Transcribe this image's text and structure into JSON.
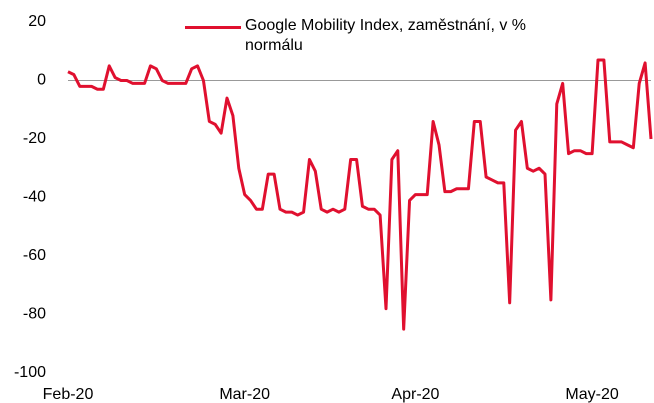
{
  "chart_data": {
    "type": "line",
    "categories": [
      "Feb-20",
      null,
      null,
      null,
      null,
      null,
      null,
      null,
      null,
      null,
      null,
      null,
      null,
      null,
      null,
      null,
      null,
      null,
      null,
      null,
      null,
      null,
      null,
      null,
      null,
      null,
      null,
      null,
      null,
      null,
      "Mar-20",
      null,
      null,
      null,
      null,
      null,
      null,
      null,
      null,
      null,
      null,
      null,
      null,
      null,
      null,
      null,
      null,
      null,
      null,
      null,
      null,
      null,
      null,
      null,
      null,
      null,
      null,
      null,
      null,
      "Apr-20",
      null,
      null,
      null,
      null,
      null,
      null,
      null,
      null,
      null,
      null,
      null,
      null,
      null,
      null,
      null,
      null,
      null,
      null,
      null,
      null,
      null,
      null,
      null,
      null,
      null,
      null,
      null,
      null,
      null,
      "May-20",
      null,
      null,
      null,
      null,
      null,
      null,
      null,
      null,
      null,
      null
    ],
    "series": [
      {
        "name": "Google Mobility Index, zaměstnání, v % normálu",
        "color": "#e0102f",
        "values": [
          3,
          2,
          -2,
          -2,
          -2,
          -3,
          -3,
          5,
          1,
          0,
          0,
          -1,
          -1,
          -1,
          5,
          4,
          0,
          -1,
          -1,
          -1,
          -1,
          4,
          5,
          0,
          -14,
          -15,
          -18,
          -6,
          -12,
          -30,
          -39,
          -41,
          -44,
          -44,
          -32,
          -32,
          -44,
          -45,
          -45,
          -46,
          -45,
          -27,
          -31,
          -44,
          -45,
          -44,
          -45,
          -44,
          -27,
          -27,
          -43,
          -44,
          -44,
          -46,
          -78,
          -27,
          -24,
          -85,
          -41,
          -39,
          -39,
          -39,
          -14,
          -22,
          -38,
          -38,
          -37,
          -37,
          -37,
          -14,
          -14,
          -33,
          -34,
          -35,
          -35,
          -76,
          -17,
          -14,
          -30,
          -31,
          -30,
          -32,
          -75,
          -8,
          -1,
          -25,
          -24,
          -24,
          -25,
          -25,
          7,
          7,
          -21,
          -21,
          -21,
          -22,
          -23,
          -1,
          6,
          -20
        ]
      }
    ],
    "ylim": [
      -100,
      20
    ],
    "yticks": [
      -100,
      -80,
      -60,
      -40,
      -20,
      0,
      20
    ]
  }
}
